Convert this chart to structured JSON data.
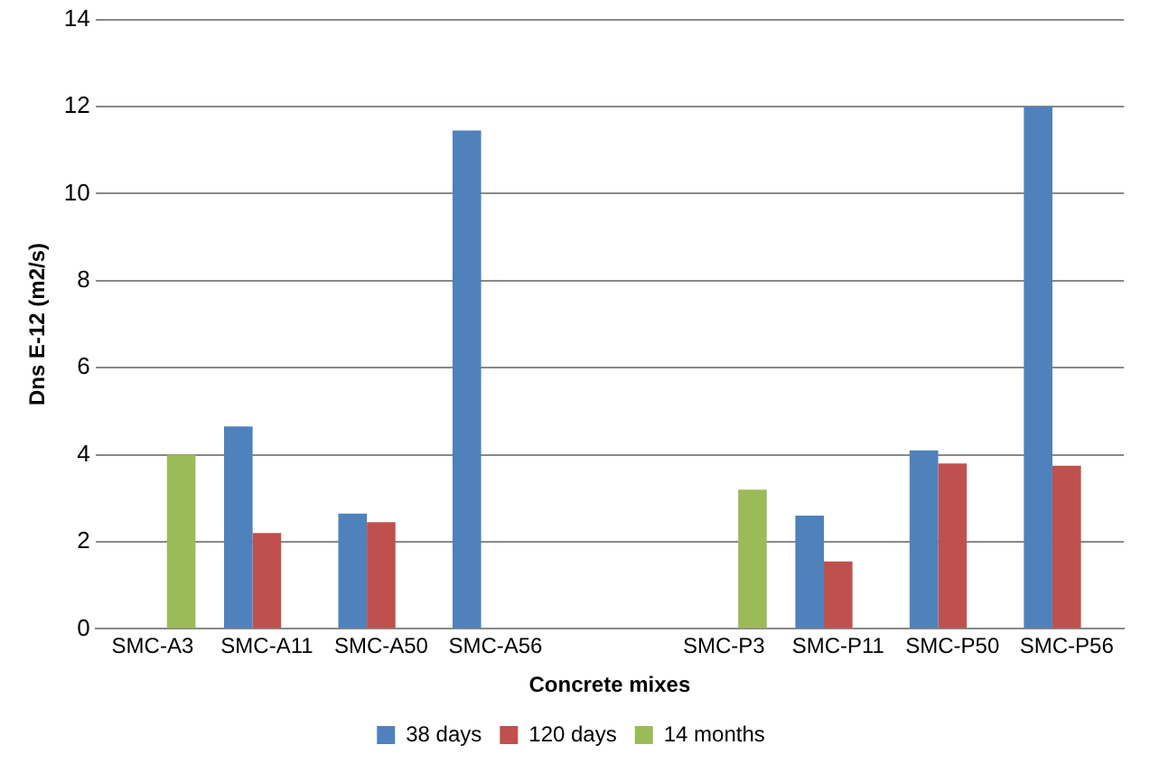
{
  "chart_data": {
    "type": "bar",
    "xlabel": "Concrete mixes",
    "ylabel": "Dns E-12 (m2/s)",
    "categories": [
      "SMC-A3",
      "SMC-A11",
      "SMC-A50",
      "SMC-A56",
      null,
      "SMC-P3",
      "SMC-P11",
      "SMC-P50",
      "SMC-P56"
    ],
    "series": [
      {
        "name": "38 days",
        "color": "#4f81bd",
        "values": [
          null,
          4.65,
          2.65,
          11.45,
          null,
          null,
          2.6,
          4.1,
          12.0
        ]
      },
      {
        "name": "120 days",
        "color": "#c0504d",
        "values": [
          null,
          2.2,
          2.45,
          null,
          null,
          null,
          1.55,
          3.8,
          3.75
        ]
      },
      {
        "name": "14 months",
        "color": "#9bbb59",
        "values": [
          4.0,
          null,
          null,
          null,
          null,
          3.2,
          null,
          null,
          null
        ]
      }
    ],
    "ylim": [
      0,
      14
    ],
    "yticks": [
      0,
      2,
      4,
      6,
      8,
      10,
      12,
      14
    ],
    "grid": "y",
    "legend": "bottom"
  }
}
